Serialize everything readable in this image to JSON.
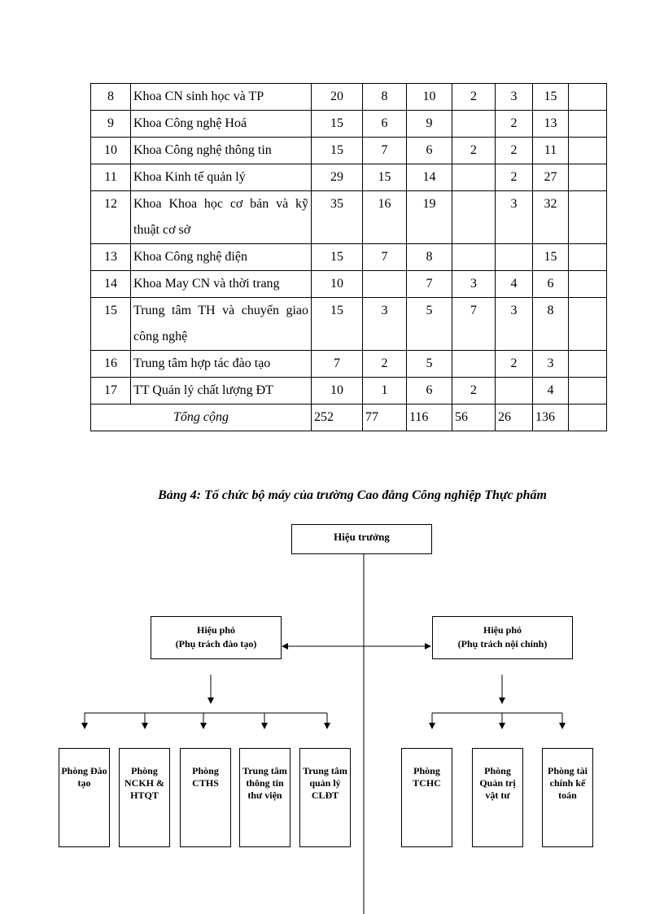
{
  "table": {
    "rows": [
      {
        "no": "8",
        "name": "Khoa CN sinh học và TP",
        "c": [
          "20",
          "8",
          "10",
          "2",
          "3",
          "15",
          ""
        ]
      },
      {
        "no": "9",
        "name": "Khoa Công nghệ Hoá",
        "c": [
          "15",
          "6",
          "9",
          "",
          "2",
          "13",
          ""
        ]
      },
      {
        "no": "10",
        "name": "Khoa Công nghệ thông tin",
        "c": [
          "15",
          "7",
          "6",
          "2",
          "2",
          "11",
          ""
        ]
      },
      {
        "no": "11",
        "name": "Khoa Kinh tế quản lý",
        "c": [
          "29",
          "15",
          "14",
          "",
          "2",
          "27",
          ""
        ]
      },
      {
        "no": "12",
        "name": "Khoa Khoa học cơ bản và kỹ thuật cơ sở",
        "c": [
          "35",
          "16",
          "19",
          "",
          "3",
          "32",
          ""
        ]
      },
      {
        "no": "13",
        "name": "Khoa Công nghệ điện",
        "c": [
          "15",
          "7",
          "8",
          "",
          "",
          "15",
          ""
        ]
      },
      {
        "no": "14",
        "name": "Khoa May CN và thời trang",
        "c": [
          "10",
          "",
          "7",
          "3",
          "4",
          "6",
          ""
        ]
      },
      {
        "no": "15",
        "name": "Trung tâm TH và chuyển giao công nghệ",
        "c": [
          "15",
          "3",
          "5",
          "7",
          "3",
          "8",
          ""
        ]
      },
      {
        "no": "16",
        "name": "Trung tâm hợp tác đào tạo",
        "c": [
          "7",
          "2",
          "5",
          "",
          "2",
          "3",
          ""
        ]
      },
      {
        "no": "17",
        "name": "TT Quản lý chất lượng ĐT",
        "c": [
          "10",
          "1",
          "6",
          "2",
          "",
          "4",
          ""
        ]
      }
    ],
    "total": {
      "label": "Tổng cộng",
      "c": [
        "252",
        "77",
        "116",
        "56",
        "26",
        "136",
        ""
      ]
    }
  },
  "caption": "Bảng 4: Tổ chức bộ máy của trường Cao đẳng Công nghiệp Thực phẩm",
  "org": {
    "head": "Hiệu trưởng",
    "vp_left": {
      "title": "Hiệu phó",
      "sub": "(Phụ trách đào tạo)"
    },
    "vp_right": {
      "title": "Hiệu phó",
      "sub": "(Phụ trách nội chính)"
    },
    "left_units": [
      "Phòng Đào tạo",
      "Phòng NCKH & HTQT",
      "Phòng CTHS",
      "Trung tâm thông tin thư viện",
      "Trung tâm quản lý CLĐT"
    ],
    "right_units": [
      "Phòng TCHC",
      "Phòng Quản trị vật tư",
      "Phòng tài chính kế toán"
    ]
  }
}
